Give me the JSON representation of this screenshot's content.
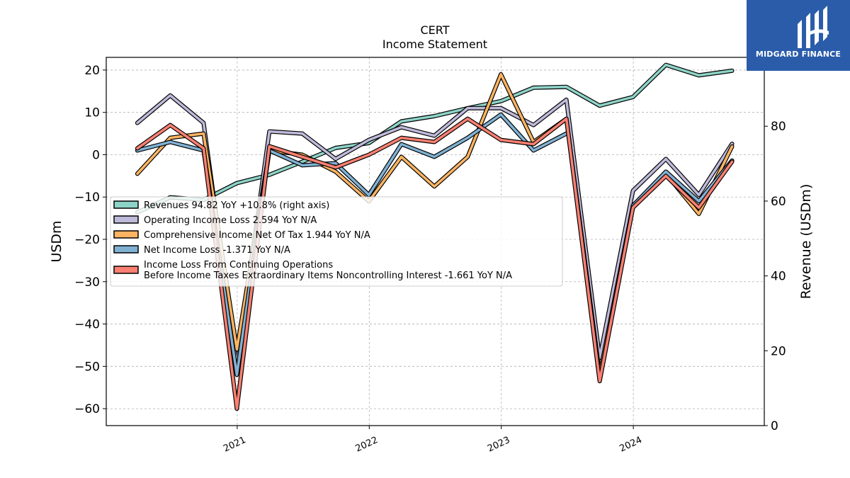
{
  "chart_data": {
    "type": "line",
    "title": "CERT",
    "subtitle": "Income Statement",
    "ylabel_left": "USDm",
    "ylabel_right": "Revenue (USDm)",
    "ylim_left": [
      -64,
      23
    ],
    "ylim_right": [
      0,
      98.4
    ],
    "left_ticks": [
      "20",
      "10",
      "0",
      "−10",
      "−20",
      "−30",
      "−40",
      "−50",
      "−60"
    ],
    "right_ticks": [
      "80",
      "60",
      "40",
      "20",
      "0"
    ],
    "x_ticks": [
      "2021",
      "2022",
      "2023",
      "2024"
    ],
    "grid": true,
    "legend_position": "center-left",
    "x": [
      "2020-03-31",
      "2020-06-30",
      "2020-09-30",
      "2020-12-31",
      "2021-03-31",
      "2021-06-30",
      "2021-09-30",
      "2021-12-31",
      "2022-03-31",
      "2022-06-30",
      "2022-09-30",
      "2022-12-31",
      "2023-03-31",
      "2023-06-30",
      "2023-09-30",
      "2023-12-31",
      "2024-03-31",
      "2024-06-30",
      "2024-09-30"
    ],
    "series": [
      {
        "name": "Revenues  94.82 YoY +10.8% (right axis)",
        "axis": "right",
        "color": "#8dd3c7",
        "values": [
          57.0,
          61.0,
          60.3,
          64.8,
          67.0,
          70.5,
          74.2,
          75.5,
          81.3,
          82.7,
          84.8,
          86.7,
          90.3,
          90.5,
          85.5,
          87.8,
          96.4,
          93.6,
          94.82
        ]
      },
      {
        "name": "Operating Income Loss  2.594 YoY N/A",
        "axis": "left",
        "color": "#bebada",
        "values": [
          7.5,
          14.0,
          7.5,
          -50.0,
          5.5,
          5.0,
          -1.0,
          3.5,
          6.5,
          4.5,
          11.0,
          11.0,
          7.0,
          13.0,
          -48.0,
          -8.5,
          -1.0,
          -9.5,
          2.594
        ]
      },
      {
        "name": "Comprehensive Income Net Of Tax  1.944 YoY N/A",
        "axis": "left",
        "color": "#fdb462",
        "values": [
          -4.5,
          4.0,
          5.0,
          -46.0,
          1.0,
          0.0,
          -4.0,
          -11.0,
          -0.5,
          -7.5,
          -0.5,
          19.0,
          3.0,
          8.5,
          -52.0,
          -12.0,
          -4.5,
          -14.0,
          1.944
        ]
      },
      {
        "name": "Net Income Loss  -1.371 YoY N/A",
        "axis": "left",
        "color": "#80b1d3",
        "values": [
          1.0,
          3.0,
          1.0,
          -52.0,
          1.0,
          -2.5,
          -2.0,
          -9.5,
          2.5,
          -0.5,
          4.0,
          9.5,
          1.0,
          5.0,
          null,
          -12.0,
          -4.0,
          -11.0,
          -1.371
        ]
      },
      {
        "name": "Income Loss From Continuing Operations\nBefore Income Taxes Extraordinary Items Noncontrolling Interest  -1.661 YoY N/A",
        "axis": "left",
        "color": "#fb8072",
        "values": [
          1.5,
          7.0,
          1.5,
          -60.0,
          2.0,
          -0.5,
          -3.0,
          0.0,
          4.0,
          3.0,
          8.5,
          3.5,
          2.5,
          8.5,
          -53.5,
          -12.5,
          -5.0,
          -12.5,
          -1.661
        ]
      }
    ]
  },
  "logo": {
    "text": "MIDGARD FINANCE",
    "color": "#2a5caa"
  }
}
